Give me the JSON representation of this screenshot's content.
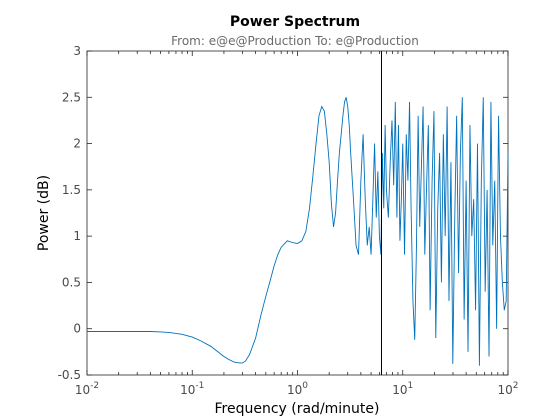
{
  "chart_data": {
    "type": "line",
    "title": "Power Spectrum",
    "subtitle": "From: e@e@Production  To: e@Production",
    "xlabel": "Frequency  (rad/minute)",
    "ylabel": "Power (dB)",
    "xscale": "log",
    "xlim": [
      0.01,
      100
    ],
    "ylim": [
      -0.5,
      3
    ],
    "xtick_labels": [
      {
        "base": "10",
        "exp": "-2"
      },
      {
        "base": "10",
        "exp": "-1"
      },
      {
        "base": "10",
        "exp": "0"
      },
      {
        "base": "10",
        "exp": "1"
      },
      {
        "base": "10",
        "exp": "2"
      }
    ],
    "yticks": [
      -0.5,
      0,
      0.5,
      1,
      1.5,
      2,
      2.5,
      3
    ],
    "ytick_labels": [
      "-0.5",
      "0",
      "0.5",
      "1",
      "1.5",
      "2",
      "2.5",
      "3"
    ],
    "grid": false,
    "vertical_line_x": 6.28,
    "line_color": "#0072bd",
    "vline_color": "#000000",
    "series": [
      {
        "x": [
          0.01,
          0.015,
          0.02,
          0.03,
          0.04,
          0.05,
          0.06,
          0.08,
          0.1,
          0.12,
          0.15,
          0.18,
          0.2,
          0.22,
          0.25,
          0.28,
          0.3,
          0.32,
          0.35,
          0.4,
          0.45,
          0.5,
          0.55,
          0.6,
          0.65,
          0.7,
          0.8,
          0.9,
          1.0,
          1.1,
          1.2,
          1.3,
          1.4,
          1.5,
          1.6,
          1.7,
          1.8,
          1.9,
          2.0,
          2.1,
          2.2,
          2.3,
          2.4,
          2.5,
          2.6,
          2.7,
          2.8,
          2.9,
          3.0,
          3.1,
          3.2,
          3.4,
          3.6,
          3.8,
          4.0,
          4.2,
          4.4,
          4.6,
          4.8,
          5.0,
          5.2,
          5.4,
          5.6,
          5.8,
          6.0,
          6.2,
          6.4,
          6.6,
          6.8,
          7.0,
          7.3,
          7.6,
          7.9,
          8.2,
          8.5,
          8.8,
          9.1,
          9.4,
          9.7,
          10.0,
          10.4,
          10.8,
          11.2,
          11.6,
          12.0,
          12.5,
          13.0,
          13.5,
          14.0,
          14.5,
          15.0,
          15.6,
          16.2,
          16.8,
          17.5,
          18.2,
          19.0,
          19.8,
          20.6,
          21.5,
          22.4,
          23.3,
          24.3,
          25.3,
          26.4,
          27.5,
          28.7,
          29.9,
          31.2,
          32.5,
          33.9,
          35.3,
          36.8,
          38.3,
          40.0,
          41.7,
          43.5,
          45.3,
          47.2,
          49.2,
          51.3,
          53.5,
          55.8,
          58.2,
          60.7,
          63.3,
          66.0,
          68.8,
          71.7,
          74.8,
          78.0,
          81.3,
          84.8,
          88.4,
          92.2,
          96.1,
          100
        ],
        "y": [
          -0.03,
          -0.03,
          -0.03,
          -0.03,
          -0.03,
          -0.035,
          -0.04,
          -0.06,
          -0.09,
          -0.13,
          -0.19,
          -0.26,
          -0.3,
          -0.33,
          -0.36,
          -0.37,
          -0.37,
          -0.35,
          -0.28,
          -0.1,
          0.15,
          0.35,
          0.52,
          0.68,
          0.8,
          0.88,
          0.95,
          0.93,
          0.92,
          0.95,
          1.05,
          1.3,
          1.65,
          2.0,
          2.3,
          2.4,
          2.35,
          2.1,
          1.8,
          1.35,
          1.1,
          1.25,
          1.6,
          1.9,
          2.1,
          2.3,
          2.45,
          2.5,
          2.4,
          2.2,
          1.9,
          1.4,
          0.9,
          0.8,
          1.6,
          2.1,
          1.4,
          0.9,
          1.1,
          0.8,
          1.4,
          2.0,
          1.2,
          1.7,
          1.0,
          0.8,
          1.9,
          1.3,
          2.2,
          1.5,
          1.2,
          1.8,
          2.25,
          1.55,
          2.45,
          1.2,
          2.2,
          0.95,
          1.4,
          2.0,
          0.8,
          2.1,
          1.6,
          2.45,
          1.3,
          0.3,
          -0.12,
          0.9,
          2.3,
          1.1,
          1.7,
          2.4,
          0.8,
          1.5,
          2.2,
          0.2,
          1.6,
          2.35,
          -0.1,
          1.3,
          1.9,
          0.5,
          2.1,
          1.0,
          2.4,
          0.3,
          1.8,
          -0.38,
          1.2,
          2.3,
          0.6,
          1.9,
          2.5,
          0.1,
          1.6,
          -0.25,
          2.2,
          1.0,
          1.4,
          0.2,
          2.0,
          -0.4,
          1.6,
          2.5,
          0.4,
          1.5,
          -0.3,
          2.45,
          0.9,
          1.6,
          0.0,
          2.3,
          1.0,
          0.5,
          0.2,
          0.3,
          1.9
        ]
      }
    ]
  }
}
